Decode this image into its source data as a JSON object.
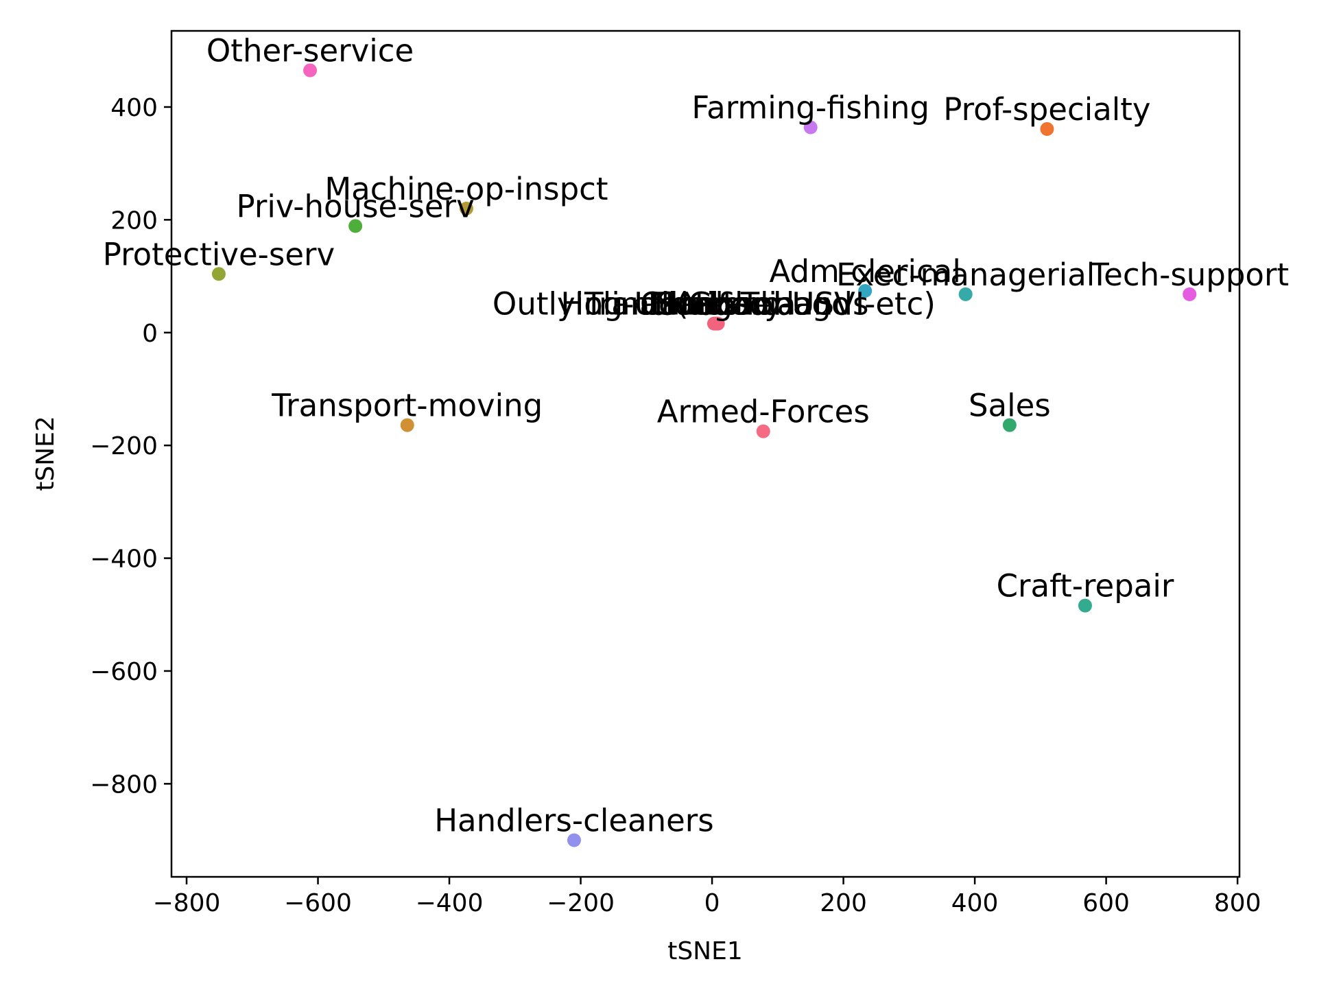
{
  "chart_data": {
    "type": "scatter",
    "xlabel": "tSNE1",
    "ylabel": "tSNE2",
    "xlim": [
      -823,
      803
    ],
    "ylim": [
      -965,
      535
    ],
    "xticks": [
      -800,
      -600,
      -400,
      -200,
      0,
      200,
      400,
      600,
      800
    ],
    "yticks": [
      -800,
      -600,
      -400,
      -200,
      0,
      200,
      400
    ],
    "xtick_labels": [
      "−800",
      "−600",
      "−400",
      "−200",
      "0",
      "200",
      "400",
      "600",
      "800"
    ],
    "ytick_labels": [
      "−800",
      "−600",
      "−400",
      "−200",
      "0",
      "200",
      "400"
    ],
    "grid": false,
    "points": [
      {
        "label": "Other-service",
        "x": -612,
        "y": 465,
        "color": "#f565c0"
      },
      {
        "label": "Farming-fishing",
        "x": 150,
        "y": 364,
        "color": "#c878f0"
      },
      {
        "label": "Prof-specialty",
        "x": 510,
        "y": 361,
        "color": "#f07430"
      },
      {
        "label": "Machine-op-inspct",
        "x": -374,
        "y": 220,
        "color": "#b29a38"
      },
      {
        "label": "Priv-house-serv",
        "x": -543,
        "y": 189,
        "color": "#4eae3a"
      },
      {
        "label": "Protective-serv",
        "x": -751,
        "y": 104,
        "color": "#93a532"
      },
      {
        "label": "Adm-clerical",
        "x": 233,
        "y": 74,
        "color": "#33a6c4"
      },
      {
        "label": "Exec-managerial",
        "x": 386,
        "y": 68,
        "color": "#35aaa8"
      },
      {
        "label": "Tech-support",
        "x": 727,
        "y": 68,
        "color": "#e65ce0"
      },
      {
        "label": "Outlying-US(Guam-USVI-etc)",
        "x": 3,
        "y": 16,
        "color": "#f2637e"
      },
      {
        "label": "Holand-Netherlands",
        "x": 4,
        "y": 16,
        "color": "#f2637e"
      },
      {
        "label": "Thailand",
        "x": 5,
        "y": 16,
        "color": "#f2637e"
      },
      {
        "label": "Laos",
        "x": 6,
        "y": 16,
        "color": "#f2637e"
      },
      {
        "label": "Hungary",
        "x": 7,
        "y": 16,
        "color": "#f2637e"
      },
      {
        "label": "Trinadad&Tobago",
        "x": 8,
        "y": 16,
        "color": "#f2637e"
      },
      {
        "label": "Cambodia",
        "x": 9,
        "y": 16,
        "color": "#f2637e"
      },
      {
        "label": "Transport-moving",
        "x": -464,
        "y": -164,
        "color": "#d09033"
      },
      {
        "label": "Armed-Forces",
        "x": 78,
        "y": -175,
        "color": "#f46b82"
      },
      {
        "label": "Sales",
        "x": 453,
        "y": -164,
        "color": "#31a86c"
      },
      {
        "label": "Craft-repair",
        "x": 568,
        "y": -484,
        "color": "#32ab8f"
      },
      {
        "label": "Handlers-cleaners",
        "x": -210,
        "y": -900,
        "color": "#9290ee"
      }
    ]
  }
}
